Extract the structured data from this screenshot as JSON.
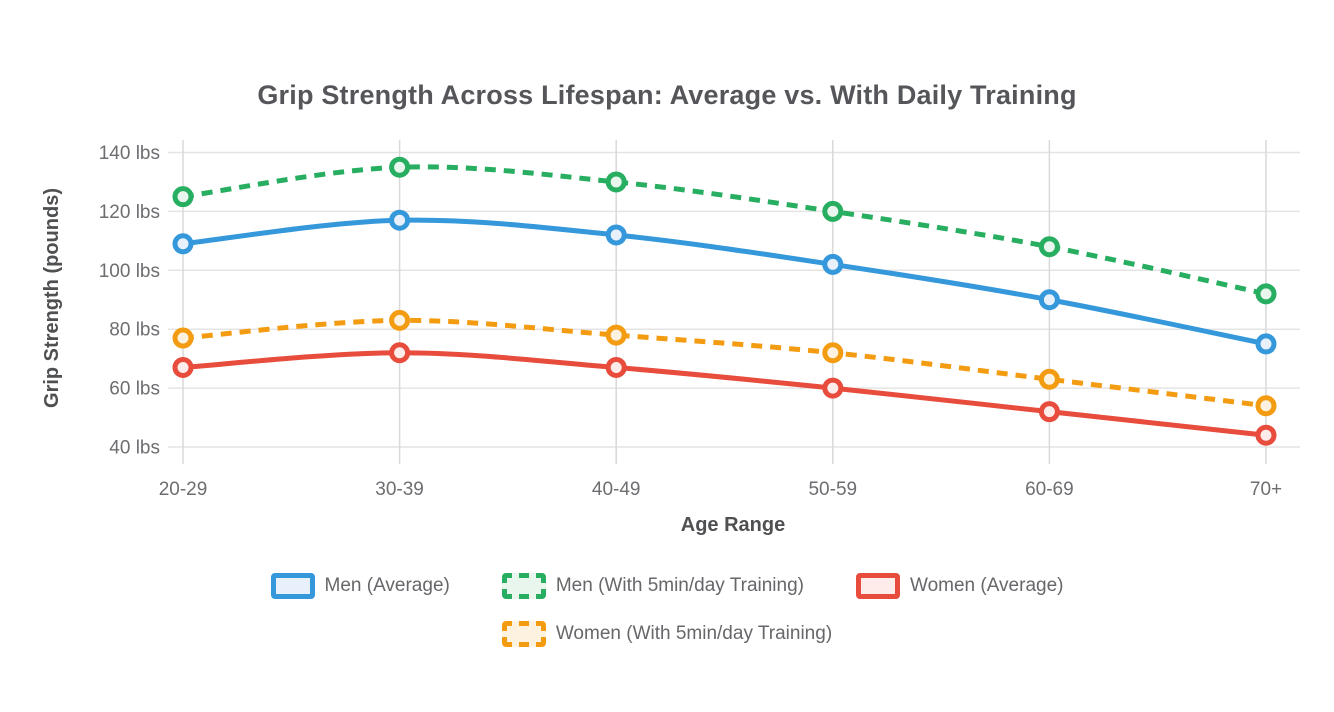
{
  "title": "Grip Strength Across Lifespan: Average vs. With Daily Training",
  "chart_data": {
    "type": "line",
    "title": "Grip Strength Across Lifespan: Average vs. With Daily Training",
    "categories": [
      "20-29",
      "30-39",
      "40-49",
      "50-59",
      "60-69",
      "70+"
    ],
    "series": [
      {
        "name": "Men (Average)",
        "values": [
          109,
          117,
          112,
          102,
          90,
          75
        ],
        "color": "#3498db",
        "fill_tint": "#e8f1fb",
        "dashed": false
      },
      {
        "name": "Men (With 5min/day Training)",
        "values": [
          125,
          135,
          130,
          120,
          108,
          92
        ],
        "color": "#27ae60",
        "fill_tint": "#e9f6ee",
        "dashed": true
      },
      {
        "name": "Women (Average)",
        "values": [
          67,
          72,
          67,
          60,
          52,
          44
        ],
        "color": "#e74c3c",
        "fill_tint": "#fdecea",
        "dashed": false
      },
      {
        "name": "Women (With 5min/day Training)",
        "values": [
          77,
          83,
          78,
          72,
          63,
          54
        ],
        "color": "#f39c12",
        "fill_tint": "#fdf2df",
        "dashed": true
      }
    ],
    "xlabel": "Age Range",
    "ylabel": "Grip Strength (pounds)",
    "y_ticks": [
      40,
      60,
      80,
      100,
      120,
      140
    ],
    "y_tick_suffix": " lbs",
    "ylim": [
      34,
      144
    ],
    "grid": true,
    "legend_position": "bottom",
    "grid_color_h": "#e4e4e4",
    "grid_color_v": "#d9d9d9",
    "text_color": "#6d6e71"
  }
}
